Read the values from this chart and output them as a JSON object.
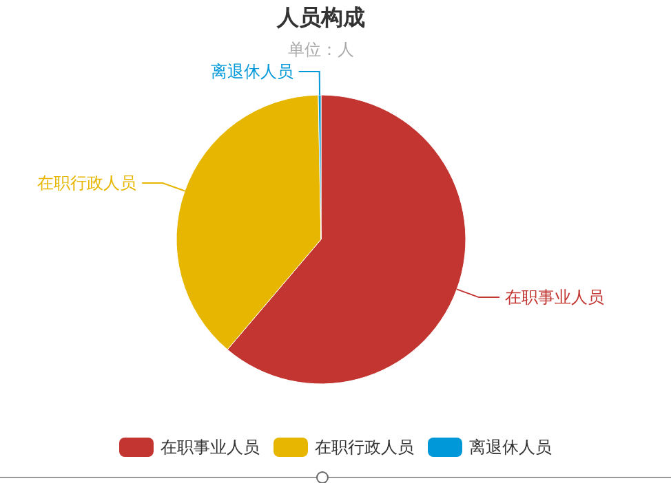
{
  "chart_data": {
    "type": "pie",
    "title": "人员构成",
    "subtitle": "单位：人",
    "categories": [
      "在职事业人员",
      "在职行政人员",
      "离退休人员"
    ],
    "values": [
      61.2,
      38.5,
      0.3
    ],
    "colors": [
      "#c23531",
      "#e6b600",
      "#0098d9"
    ],
    "legend": "bottom"
  }
}
